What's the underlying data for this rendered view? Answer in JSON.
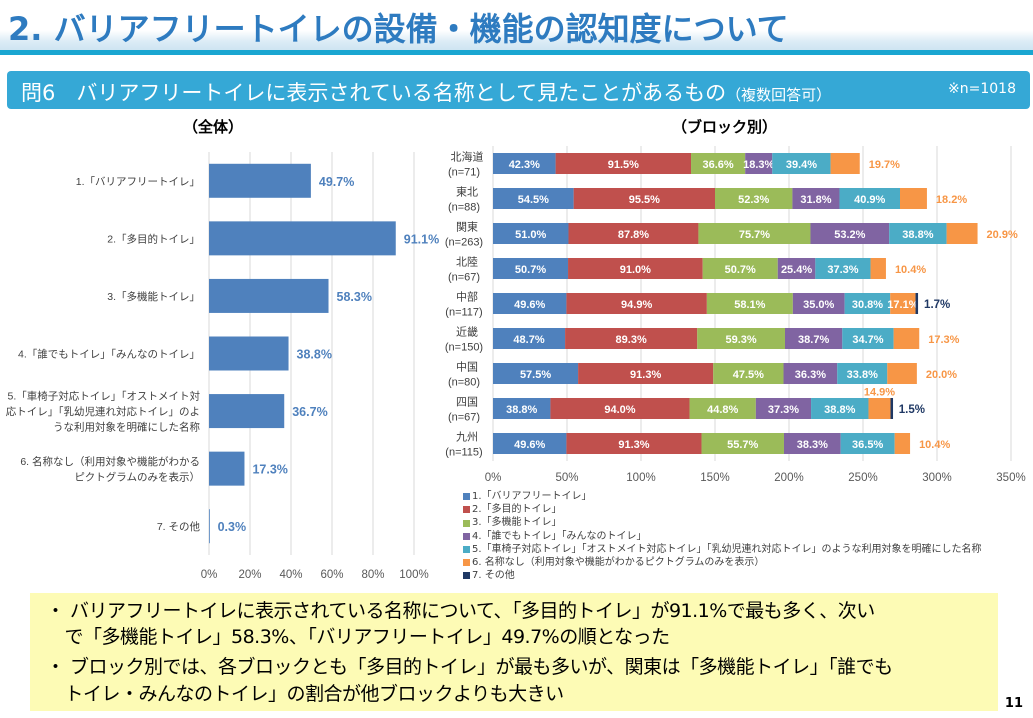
{
  "header": {
    "title": "2. バリアフリートイレの設備・機能の認知度について",
    "question": "問6　バリアフリートイレに表示されている名称として見たことがあるもの",
    "question_note": "（複数回答可）",
    "sample_size": "※n=1018"
  },
  "colors": {
    "s1": "#4f81bd",
    "s2": "#c0504d",
    "s3": "#9bbb59",
    "s4": "#8064a2",
    "s5": "#4bacc6",
    "s6": "#f79646",
    "s7": "#1f3864"
  },
  "chart_data": [
    {
      "type": "bar",
      "orientation": "horizontal",
      "title": "（全体）",
      "categories": [
        "1.「バリアフリートイレ」",
        "2.「多目的トイレ」",
        "3.「多機能トイレ」",
        "4.「誰でもトイレ」「みんなのトイレ」",
        "5.「車椅子対応トイレ」「オストメイト対応トイレ」「乳幼児連れ対応トイレ」のような利用対象を明確にした名称",
        "6. 名称なし（利用対象や機能がわかるピクトグラムのみを表示）",
        "7. その他"
      ],
      "category_lines": [
        [
          "1.「バリアフリートイレ」"
        ],
        [
          "2.「多目的トイレ」"
        ],
        [
          "3.「多機能トイレ」"
        ],
        [
          "4.「誰でもトイレ」「みんなのトイレ」"
        ],
        [
          "5.「車椅子対応トイレ」「オストメイト対",
          "応トイレ」「乳幼児連れ対応トイレ」のよ",
          "うな利用対象を明確にした名称"
        ],
        [
          "6. 名称なし（利用対象や機能がわかる",
          "ピクトグラムのみを表示）"
        ],
        [
          "7. その他"
        ]
      ],
      "values": [
        49.7,
        91.1,
        58.3,
        38.8,
        36.7,
        17.3,
        0.3
      ],
      "data_labels": [
        "49.7%",
        "91.1%",
        "58.3%",
        "38.8%",
        "36.7%",
        "17.3%",
        "0.3%"
      ],
      "xlim": [
        0,
        100
      ],
      "xticks": [
        "0%",
        "20%",
        "40%",
        "60%",
        "80%",
        "100%"
      ],
      "grid": true,
      "color": "#4f81bd"
    },
    {
      "type": "bar",
      "orientation": "horizontal",
      "stacked": true,
      "title": "（ブロック別）",
      "categories": [
        [
          "北海道",
          "(n=71)"
        ],
        [
          "東北",
          "(n=88)"
        ],
        [
          "関東",
          "(n=263)"
        ],
        [
          "北陸",
          "(n=67)"
        ],
        [
          "中部",
          "(n=117)"
        ],
        [
          "近畿",
          "(n=150)"
        ],
        [
          "中国",
          "(n=80)"
        ],
        [
          "四国",
          "(n=67)"
        ],
        [
          "九州",
          "(n=115)"
        ]
      ],
      "series": [
        {
          "name": "1.「バリアフリートイレ」",
          "values": [
            42.3,
            54.5,
            51.0,
            50.7,
            49.6,
            48.7,
            57.5,
            38.8,
            49.6
          ]
        },
        {
          "name": "2.「多目的トイレ」",
          "values": [
            91.5,
            95.5,
            87.8,
            91.0,
            94.9,
            89.3,
            91.3,
            94.0,
            91.3
          ]
        },
        {
          "name": "3.「多機能トイレ」",
          "values": [
            36.6,
            52.3,
            75.7,
            50.7,
            58.1,
            59.3,
            47.5,
            44.8,
            55.7
          ]
        },
        {
          "name": "4.「誰でもトイレ」「みんなのトイレ」",
          "values": [
            18.3,
            31.8,
            53.2,
            25.4,
            35.0,
            38.7,
            36.3,
            37.3,
            38.3
          ]
        },
        {
          "name": "5.「車椅子対応トイレ」「オストメイト対応トイレ」「乳幼児連れ対応トイレ」のような利用対象を明確にした名称",
          "values": [
            39.4,
            40.9,
            38.8,
            37.3,
            30.8,
            34.7,
            33.8,
            38.8,
            36.5
          ]
        },
        {
          "name": "6. 名称なし（利用対象や機能がわかるピクトグラムのみを表示）",
          "values": [
            19.7,
            18.2,
            20.9,
            10.4,
            17.1,
            17.3,
            20.0,
            14.9,
            10.4
          ]
        },
        {
          "name": "7. その他",
          "values": [
            0,
            0,
            0,
            0,
            1.7,
            0,
            0,
            1.5,
            0
          ]
        }
      ],
      "xlim": [
        0,
        350
      ],
      "xticks": [
        "0%",
        "50%",
        "100%",
        "150%",
        "200%",
        "250%",
        "300%",
        "350%"
      ],
      "grid": true,
      "legend_position": "bottom-left"
    }
  ],
  "summary": {
    "lines": [
      "・ バリアフリートイレに表示されている名称について、「多目的トイレ」が91.1%で最も多く、次い",
      "　で「多機能トイレ」58.3%、「バリアフリートイレ」49.7%の順となった",
      "・ ブロック別では、各ブロックとも「多目的トイレ」が最も多いが、関東は「多機能トイレ」「誰でも",
      "　トイレ・みんなのトイレ」の割合が他ブロックよりも大きい"
    ]
  },
  "page_number": "11"
}
